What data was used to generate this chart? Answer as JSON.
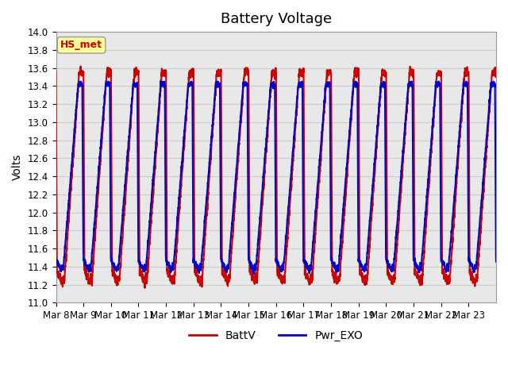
{
  "title": "Battery Voltage",
  "ylabel": "Volts",
  "ylim": [
    11.0,
    14.0
  ],
  "yticks": [
    11.0,
    11.2,
    11.4,
    11.6,
    11.8,
    12.0,
    12.2,
    12.4,
    12.6,
    12.8,
    13.0,
    13.2,
    13.4,
    13.6,
    13.8,
    14.0
  ],
  "xtick_labels": [
    "Mar 8",
    "Mar 9",
    "Mar 10",
    "Mar 11",
    "Mar 12",
    "Mar 13",
    "Mar 14",
    "Mar 15",
    "Mar 16",
    "Mar 17",
    "Mar 18",
    "Mar 19",
    "Mar 20",
    "Mar 21",
    "Mar 22",
    "Mar 23"
  ],
  "n_days": 16,
  "series": [
    {
      "name": "BattV",
      "color": "#cc0000",
      "linewidth": 1.5
    },
    {
      "name": "Pwr_EXO",
      "color": "#0000cc",
      "linewidth": 1.5
    }
  ],
  "annotation_text": "HS_met",
  "annotation_color": "#cc0000",
  "annotation_bg": "#ffff99",
  "background_color": "#ffffff",
  "plot_bg_color": "#e8e8e8",
  "grid_color": "#cccccc",
  "title_fontsize": 13,
  "axis_fontsize": 10,
  "tick_fontsize": 8.5,
  "legend_fontsize": 10
}
